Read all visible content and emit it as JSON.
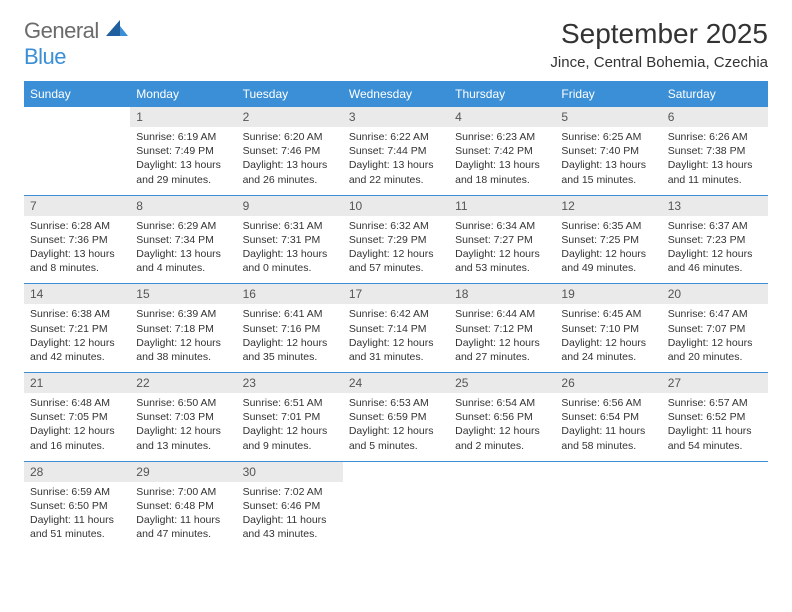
{
  "logo": {
    "general": "General",
    "blue": "Blue"
  },
  "title": "September 2025",
  "location": "Jince, Central Bohemia, Czechia",
  "colors": {
    "accent": "#3b8fd6",
    "dayHeaderBg": "#eaeaea",
    "text": "#333333"
  },
  "daysOfWeek": [
    "Sunday",
    "Monday",
    "Tuesday",
    "Wednesday",
    "Thursday",
    "Friday",
    "Saturday"
  ],
  "weeks": [
    [
      null,
      {
        "n": "1",
        "sr": "Sunrise: 6:19 AM",
        "ss": "Sunset: 7:49 PM",
        "d1": "Daylight: 13 hours",
        "d2": "and 29 minutes."
      },
      {
        "n": "2",
        "sr": "Sunrise: 6:20 AM",
        "ss": "Sunset: 7:46 PM",
        "d1": "Daylight: 13 hours",
        "d2": "and 26 minutes."
      },
      {
        "n": "3",
        "sr": "Sunrise: 6:22 AM",
        "ss": "Sunset: 7:44 PM",
        "d1": "Daylight: 13 hours",
        "d2": "and 22 minutes."
      },
      {
        "n": "4",
        "sr": "Sunrise: 6:23 AM",
        "ss": "Sunset: 7:42 PM",
        "d1": "Daylight: 13 hours",
        "d2": "and 18 minutes."
      },
      {
        "n": "5",
        "sr": "Sunrise: 6:25 AM",
        "ss": "Sunset: 7:40 PM",
        "d1": "Daylight: 13 hours",
        "d2": "and 15 minutes."
      },
      {
        "n": "6",
        "sr": "Sunrise: 6:26 AM",
        "ss": "Sunset: 7:38 PM",
        "d1": "Daylight: 13 hours",
        "d2": "and 11 minutes."
      }
    ],
    [
      {
        "n": "7",
        "sr": "Sunrise: 6:28 AM",
        "ss": "Sunset: 7:36 PM",
        "d1": "Daylight: 13 hours",
        "d2": "and 8 minutes."
      },
      {
        "n": "8",
        "sr": "Sunrise: 6:29 AM",
        "ss": "Sunset: 7:34 PM",
        "d1": "Daylight: 13 hours",
        "d2": "and 4 minutes."
      },
      {
        "n": "9",
        "sr": "Sunrise: 6:31 AM",
        "ss": "Sunset: 7:31 PM",
        "d1": "Daylight: 13 hours",
        "d2": "and 0 minutes."
      },
      {
        "n": "10",
        "sr": "Sunrise: 6:32 AM",
        "ss": "Sunset: 7:29 PM",
        "d1": "Daylight: 12 hours",
        "d2": "and 57 minutes."
      },
      {
        "n": "11",
        "sr": "Sunrise: 6:34 AM",
        "ss": "Sunset: 7:27 PM",
        "d1": "Daylight: 12 hours",
        "d2": "and 53 minutes."
      },
      {
        "n": "12",
        "sr": "Sunrise: 6:35 AM",
        "ss": "Sunset: 7:25 PM",
        "d1": "Daylight: 12 hours",
        "d2": "and 49 minutes."
      },
      {
        "n": "13",
        "sr": "Sunrise: 6:37 AM",
        "ss": "Sunset: 7:23 PM",
        "d1": "Daylight: 12 hours",
        "d2": "and 46 minutes."
      }
    ],
    [
      {
        "n": "14",
        "sr": "Sunrise: 6:38 AM",
        "ss": "Sunset: 7:21 PM",
        "d1": "Daylight: 12 hours",
        "d2": "and 42 minutes."
      },
      {
        "n": "15",
        "sr": "Sunrise: 6:39 AM",
        "ss": "Sunset: 7:18 PM",
        "d1": "Daylight: 12 hours",
        "d2": "and 38 minutes."
      },
      {
        "n": "16",
        "sr": "Sunrise: 6:41 AM",
        "ss": "Sunset: 7:16 PM",
        "d1": "Daylight: 12 hours",
        "d2": "and 35 minutes."
      },
      {
        "n": "17",
        "sr": "Sunrise: 6:42 AM",
        "ss": "Sunset: 7:14 PM",
        "d1": "Daylight: 12 hours",
        "d2": "and 31 minutes."
      },
      {
        "n": "18",
        "sr": "Sunrise: 6:44 AM",
        "ss": "Sunset: 7:12 PM",
        "d1": "Daylight: 12 hours",
        "d2": "and 27 minutes."
      },
      {
        "n": "19",
        "sr": "Sunrise: 6:45 AM",
        "ss": "Sunset: 7:10 PM",
        "d1": "Daylight: 12 hours",
        "d2": "and 24 minutes."
      },
      {
        "n": "20",
        "sr": "Sunrise: 6:47 AM",
        "ss": "Sunset: 7:07 PM",
        "d1": "Daylight: 12 hours",
        "d2": "and 20 minutes."
      }
    ],
    [
      {
        "n": "21",
        "sr": "Sunrise: 6:48 AM",
        "ss": "Sunset: 7:05 PM",
        "d1": "Daylight: 12 hours",
        "d2": "and 16 minutes."
      },
      {
        "n": "22",
        "sr": "Sunrise: 6:50 AM",
        "ss": "Sunset: 7:03 PM",
        "d1": "Daylight: 12 hours",
        "d2": "and 13 minutes."
      },
      {
        "n": "23",
        "sr": "Sunrise: 6:51 AM",
        "ss": "Sunset: 7:01 PM",
        "d1": "Daylight: 12 hours",
        "d2": "and 9 minutes."
      },
      {
        "n": "24",
        "sr": "Sunrise: 6:53 AM",
        "ss": "Sunset: 6:59 PM",
        "d1": "Daylight: 12 hours",
        "d2": "and 5 minutes."
      },
      {
        "n": "25",
        "sr": "Sunrise: 6:54 AM",
        "ss": "Sunset: 6:56 PM",
        "d1": "Daylight: 12 hours",
        "d2": "and 2 minutes."
      },
      {
        "n": "26",
        "sr": "Sunrise: 6:56 AM",
        "ss": "Sunset: 6:54 PM",
        "d1": "Daylight: 11 hours",
        "d2": "and 58 minutes."
      },
      {
        "n": "27",
        "sr": "Sunrise: 6:57 AM",
        "ss": "Sunset: 6:52 PM",
        "d1": "Daylight: 11 hours",
        "d2": "and 54 minutes."
      }
    ],
    [
      {
        "n": "28",
        "sr": "Sunrise: 6:59 AM",
        "ss": "Sunset: 6:50 PM",
        "d1": "Daylight: 11 hours",
        "d2": "and 51 minutes."
      },
      {
        "n": "29",
        "sr": "Sunrise: 7:00 AM",
        "ss": "Sunset: 6:48 PM",
        "d1": "Daylight: 11 hours",
        "d2": "and 47 minutes."
      },
      {
        "n": "30",
        "sr": "Sunrise: 7:02 AM",
        "ss": "Sunset: 6:46 PM",
        "d1": "Daylight: 11 hours",
        "d2": "and 43 minutes."
      },
      null,
      null,
      null,
      null
    ]
  ]
}
